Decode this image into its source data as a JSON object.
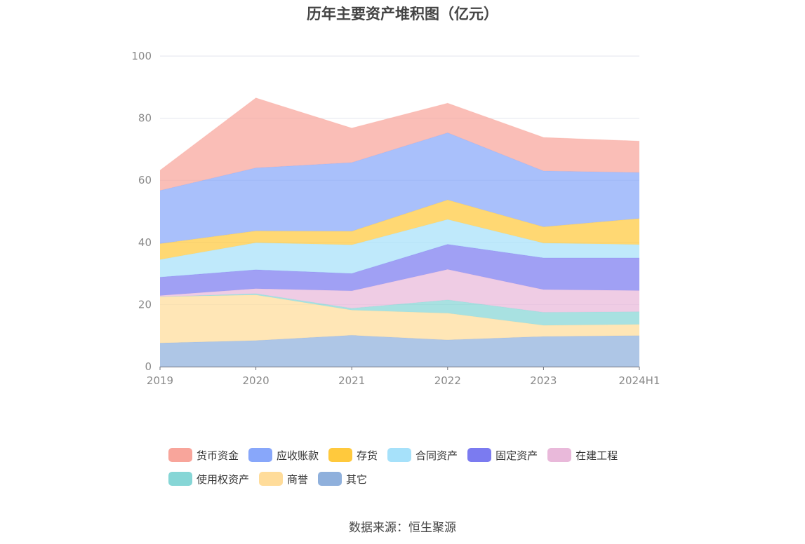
{
  "title": "历年主要资产堆积图（亿元）",
  "source": "数据来源：恒生聚源",
  "chart_data": {
    "type": "area",
    "stacked": true,
    "title": "历年主要资产堆积图（亿元）",
    "categories": [
      "2019",
      "2020",
      "2021",
      "2022",
      "2023",
      "2024H1"
    ],
    "ylim": [
      0,
      100
    ],
    "yticks": [
      "0",
      "20",
      "40",
      "60",
      "80",
      "100"
    ],
    "grid": true,
    "legend_position": "bottom",
    "series": [
      {
        "name": "其它",
        "color": "#8fb0dc",
        "values": [
          7.6,
          8.4,
          10.1,
          8.6,
          9.7,
          10.0
        ]
      },
      {
        "name": "商誉",
        "color": "#ffdc9a",
        "values": [
          14.9,
          14.7,
          8.1,
          8.6,
          3.6,
          3.6
        ]
      },
      {
        "name": "使用权资产",
        "color": "#86d6d6",
        "values": [
          0.0,
          0.4,
          0.6,
          4.3,
          4.2,
          4.1
        ]
      },
      {
        "name": "在建工程",
        "color": "#e9b9da",
        "values": [
          0.4,
          1.6,
          5.6,
          9.8,
          7.3,
          6.8
        ]
      },
      {
        "name": "固定资产",
        "color": "#7b7bf0",
        "values": [
          5.9,
          6.1,
          5.6,
          8.1,
          10.2,
          10.5
        ]
      },
      {
        "name": "合同资产",
        "color": "#a6e1fa",
        "values": [
          5.7,
          8.7,
          9.2,
          8.0,
          4.8,
          4.3
        ]
      },
      {
        "name": "存货",
        "color": "#ffc93d",
        "values": [
          5.1,
          3.8,
          4.4,
          6.3,
          5.2,
          8.4
        ]
      },
      {
        "name": "应收账款",
        "color": "#88a7fa",
        "values": [
          17.1,
          20.3,
          22.1,
          21.6,
          18.0,
          14.8
        ]
      },
      {
        "name": "货币资金",
        "color": "#f8a59b",
        "values": [
          6.5,
          22.5,
          11.1,
          9.5,
          10.8,
          10.1
        ]
      }
    ],
    "legend_order": [
      "货币资金",
      "应收账款",
      "存货",
      "合同资产",
      "固定资产",
      "在建工程",
      "使用权资产",
      "商誉",
      "其它"
    ]
  }
}
